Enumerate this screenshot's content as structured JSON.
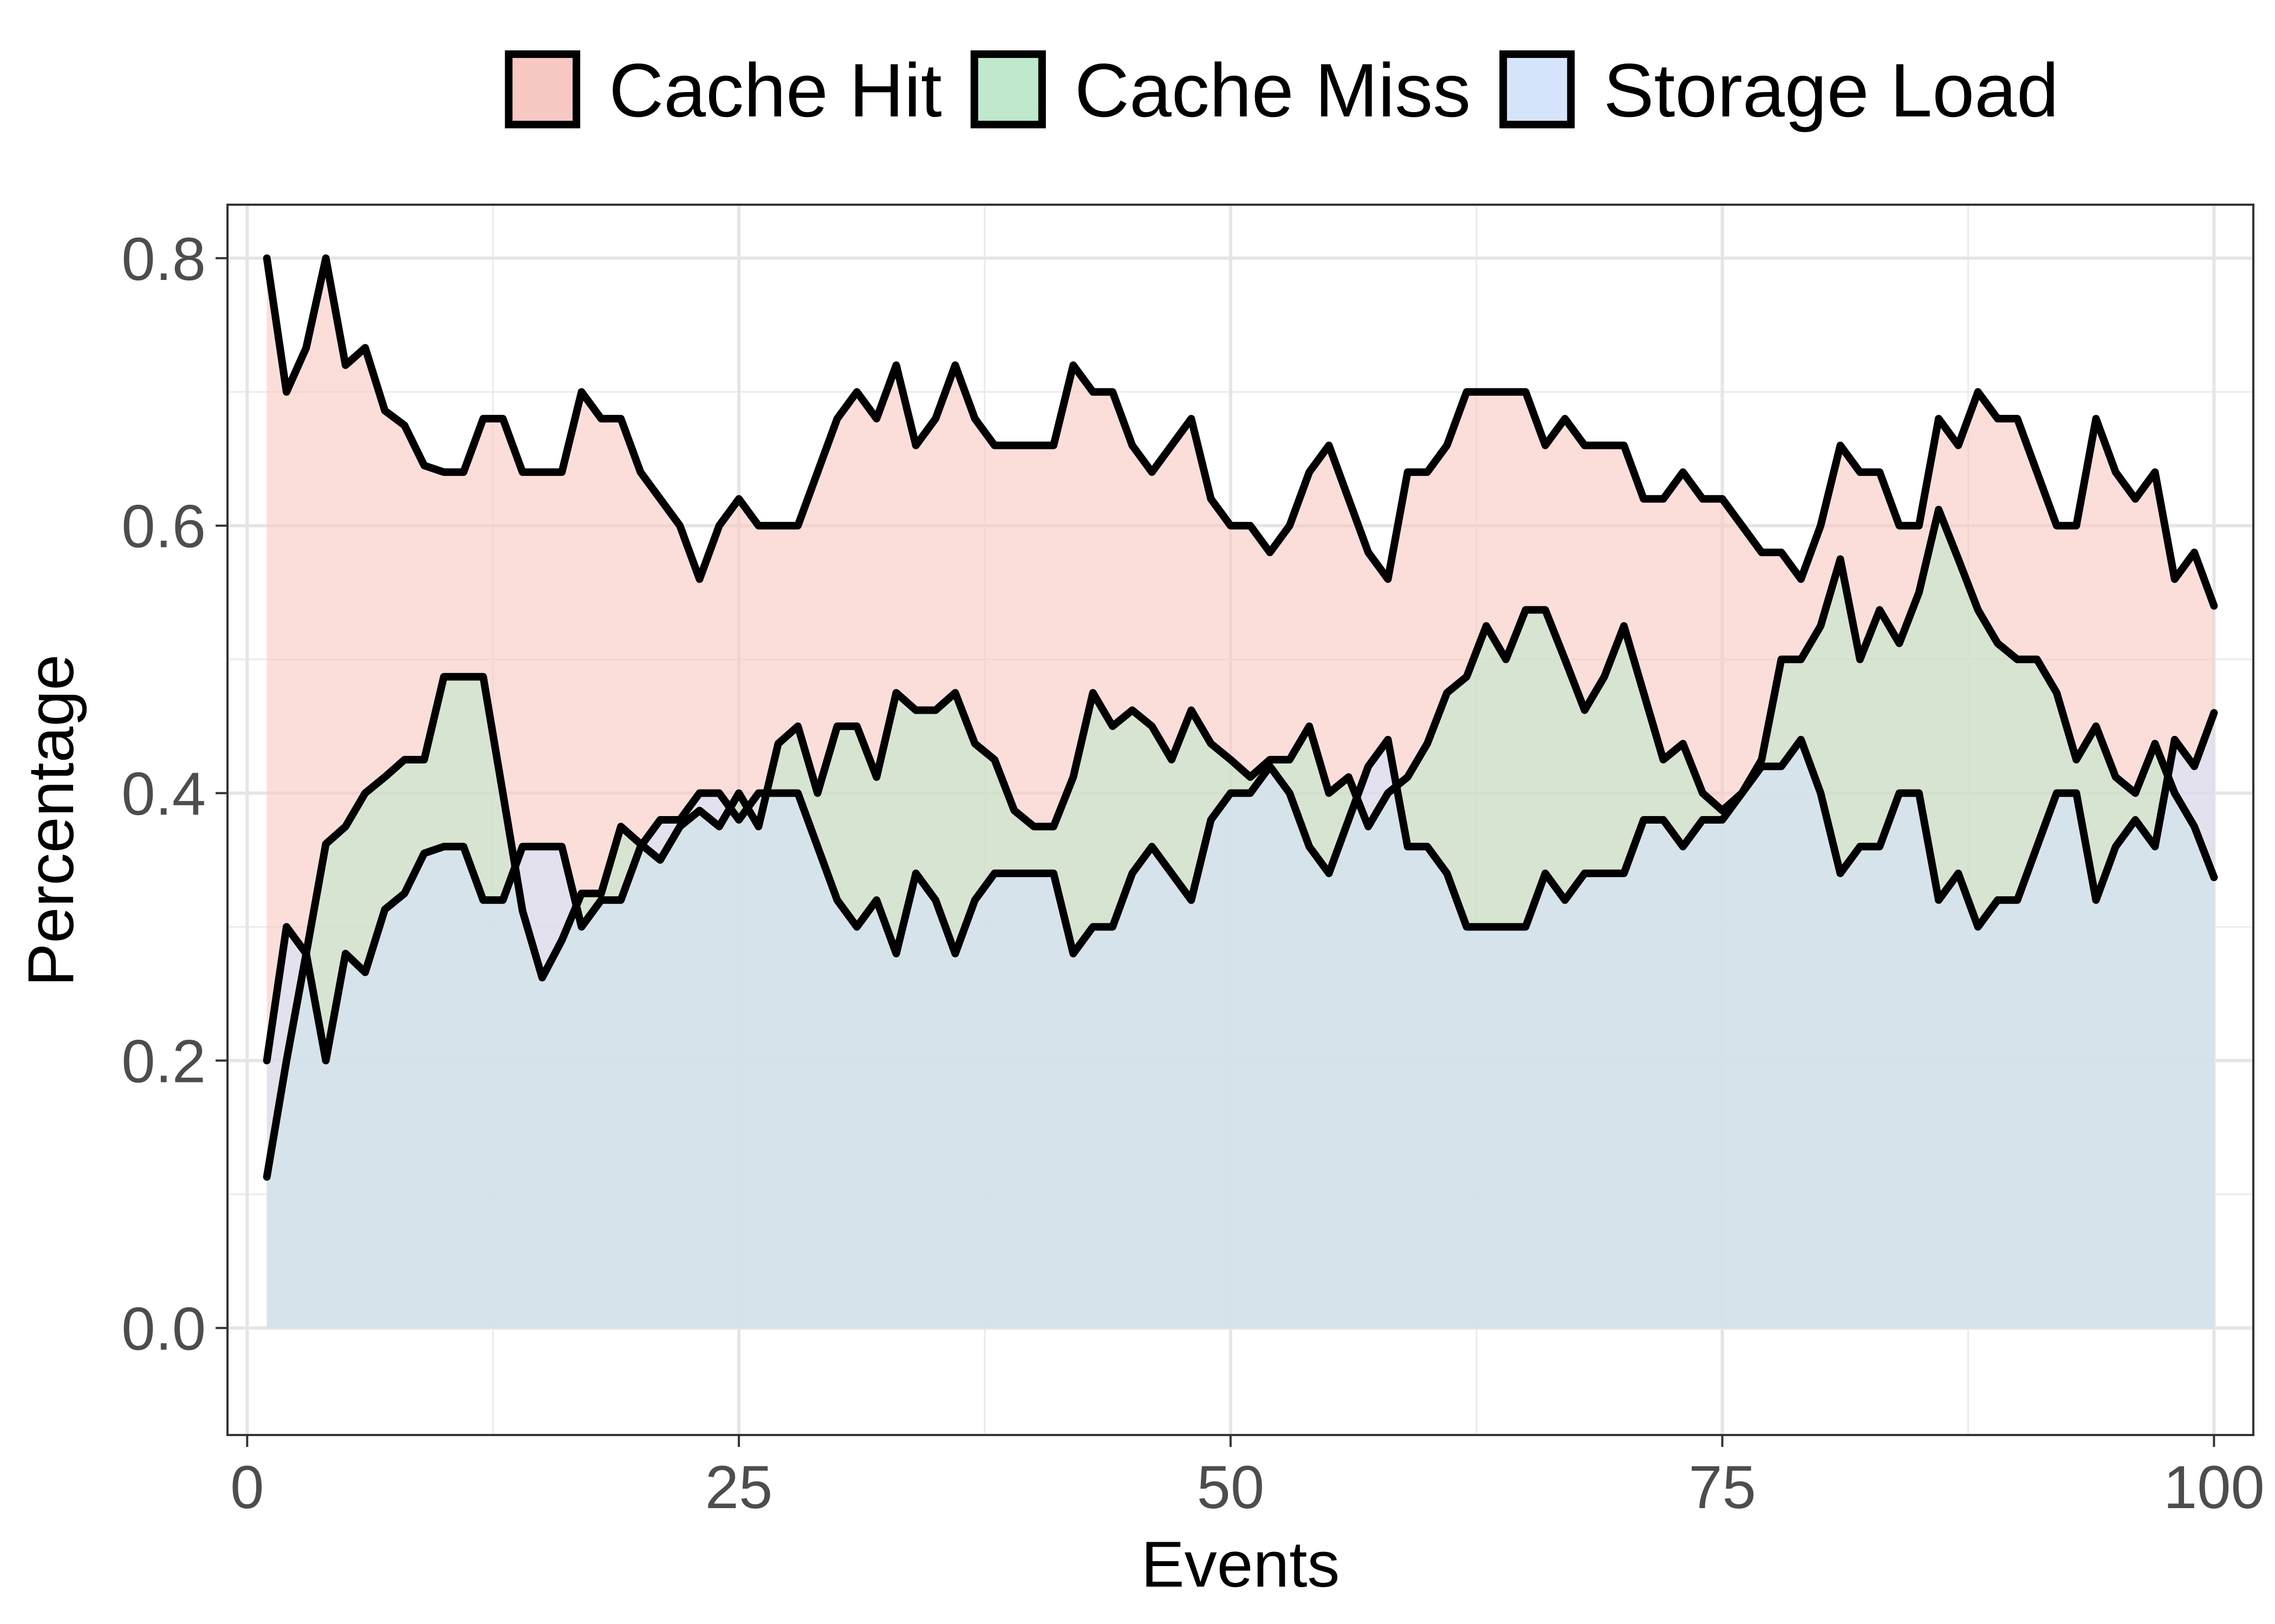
{
  "chart_data": {
    "type": "area",
    "title": "",
    "xlabel": "Events",
    "ylabel": "Percentage",
    "xlim": [
      -1,
      102
    ],
    "ylim": [
      -0.08,
      0.84
    ],
    "x_ticks": [
      0,
      25,
      50,
      75,
      100
    ],
    "x_tick_labels": [
      "0",
      "25",
      "50",
      "75",
      "100"
    ],
    "y_ticks": [
      0.0,
      0.2,
      0.4,
      0.6,
      0.8
    ],
    "y_tick_labels": [
      "0.0",
      "0.2",
      "0.4",
      "0.6",
      "0.8"
    ],
    "grid": true,
    "legend_position": "top",
    "x": [
      1,
      2,
      3,
      4,
      5,
      6,
      7,
      8,
      9,
      10,
      11,
      12,
      13,
      14,
      15,
      16,
      17,
      18,
      19,
      20,
      21,
      22,
      23,
      24,
      25,
      26,
      27,
      28,
      29,
      30,
      31,
      32,
      33,
      34,
      35,
      36,
      37,
      38,
      39,
      40,
      41,
      42,
      43,
      44,
      45,
      46,
      47,
      48,
      49,
      50,
      51,
      52,
      53,
      54,
      55,
      56,
      57,
      58,
      59,
      60,
      61,
      62,
      63,
      64,
      65,
      66,
      67,
      68,
      69,
      70,
      71,
      72,
      73,
      74,
      75,
      76,
      77,
      78,
      79,
      80,
      81,
      82,
      83,
      84,
      85,
      86,
      87,
      88,
      89,
      90,
      91,
      92,
      93,
      94,
      95,
      96,
      97,
      98,
      99,
      100
    ],
    "series": [
      {
        "name": "Cache Hit",
        "fill": "#f8c8c2",
        "values": [
          0.8,
          0.7,
          0.733,
          0.8,
          0.72,
          0.733,
          0.686,
          0.675,
          0.645,
          0.64,
          0.64,
          0.68,
          0.68,
          0.64,
          0.64,
          0.64,
          0.7,
          0.68,
          0.68,
          0.64,
          0.62,
          0.6,
          0.56,
          0.6,
          0.62,
          0.6,
          0.6,
          0.6,
          0.64,
          0.68,
          0.7,
          0.68,
          0.72,
          0.66,
          0.68,
          0.72,
          0.68,
          0.66,
          0.66,
          0.66,
          0.66,
          0.72,
          0.7,
          0.7,
          0.66,
          0.64,
          0.66,
          0.68,
          0.62,
          0.6,
          0.6,
          0.58,
          0.6,
          0.64,
          0.66,
          0.62,
          0.58,
          0.56,
          0.64,
          0.64,
          0.66,
          0.7,
          0.7,
          0.7,
          0.7,
          0.66,
          0.68,
          0.66,
          0.66,
          0.66,
          0.62,
          0.62,
          0.64,
          0.62,
          0.62,
          0.6,
          0.58,
          0.58,
          0.56,
          0.6,
          0.66,
          0.64,
          0.64,
          0.6,
          0.6,
          0.68,
          0.66,
          0.7,
          0.68,
          0.68,
          0.64,
          0.6,
          0.6,
          0.68,
          0.64,
          0.62,
          0.64,
          0.56,
          0.58,
          0.54
        ]
      },
      {
        "name": "Cache Miss",
        "fill": "#bfe8cc",
        "values": [
          0.113,
          0.2,
          0.28,
          0.362,
          0.375,
          0.4,
          0.412,
          0.425,
          0.425,
          0.487,
          0.487,
          0.487,
          0.4,
          0.312,
          0.262,
          0.29,
          0.325,
          0.325,
          0.375,
          0.362,
          0.35,
          0.375,
          0.387,
          0.375,
          0.4,
          0.375,
          0.437,
          0.45,
          0.4,
          0.45,
          0.45,
          0.412,
          0.475,
          0.462,
          0.462,
          0.475,
          0.437,
          0.425,
          0.387,
          0.375,
          0.375,
          0.412,
          0.475,
          0.45,
          0.462,
          0.45,
          0.425,
          0.462,
          0.437,
          0.425,
          0.412,
          0.425,
          0.425,
          0.45,
          0.4,
          0.412,
          0.375,
          0.4,
          0.412,
          0.437,
          0.475,
          0.487,
          0.525,
          0.5,
          0.537,
          0.537,
          0.5,
          0.462,
          0.487,
          0.525,
          0.475,
          0.425,
          0.437,
          0.4,
          0.387,
          0.4,
          0.425,
          0.5,
          0.5,
          0.525,
          0.575,
          0.5,
          0.537,
          0.512,
          0.55,
          0.612,
          0.575,
          0.537,
          0.512,
          0.5,
          0.5,
          0.475,
          0.425,
          0.45,
          0.412,
          0.4,
          0.437,
          0.4,
          0.375,
          0.337
        ]
      },
      {
        "name": "Storage Load",
        "fill": "#d5e3fb",
        "values": [
          0.2,
          0.3,
          0.28,
          0.2,
          0.28,
          0.266,
          0.313,
          0.325,
          0.355,
          0.36,
          0.36,
          0.32,
          0.32,
          0.36,
          0.36,
          0.36,
          0.3,
          0.32,
          0.32,
          0.36,
          0.38,
          0.38,
          0.4,
          0.4,
          0.38,
          0.4,
          0.4,
          0.4,
          0.36,
          0.32,
          0.3,
          0.32,
          0.28,
          0.34,
          0.32,
          0.28,
          0.32,
          0.34,
          0.34,
          0.34,
          0.34,
          0.28,
          0.3,
          0.3,
          0.34,
          0.36,
          0.34,
          0.32,
          0.38,
          0.4,
          0.4,
          0.42,
          0.4,
          0.36,
          0.34,
          0.38,
          0.42,
          0.44,
          0.36,
          0.36,
          0.34,
          0.3,
          0.3,
          0.3,
          0.3,
          0.34,
          0.32,
          0.34,
          0.34,
          0.34,
          0.38,
          0.38,
          0.36,
          0.38,
          0.38,
          0.4,
          0.42,
          0.42,
          0.44,
          0.4,
          0.34,
          0.36,
          0.36,
          0.4,
          0.4,
          0.32,
          0.34,
          0.3,
          0.32,
          0.32,
          0.36,
          0.4,
          0.4,
          0.32,
          0.36,
          0.38,
          0.36,
          0.44,
          0.42,
          0.46
        ]
      }
    ]
  }
}
